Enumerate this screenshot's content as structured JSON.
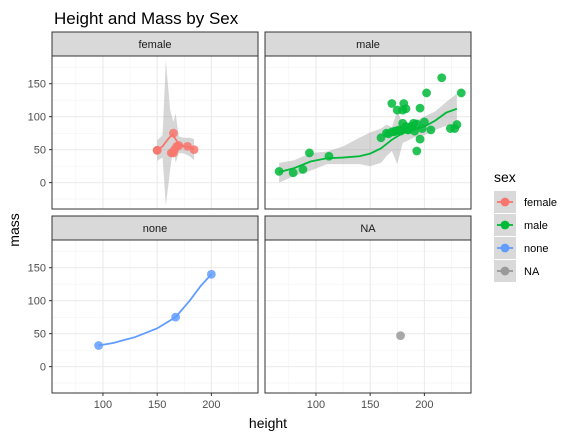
{
  "chart_data": {
    "type": "scatter",
    "title": "Height and Mass by Sex",
    "xlabel": "height",
    "ylabel": "mass",
    "xlim": [
      53,
      243
    ],
    "ylim": [
      -40,
      192
    ],
    "x_ticks": [
      100,
      150,
      200
    ],
    "y_ticks": [
      0,
      50,
      100,
      150
    ],
    "legend": {
      "title": "sex",
      "entries": [
        "female",
        "male",
        "none",
        "NA"
      ],
      "placement": "right"
    },
    "panels": [
      {
        "strip": "female",
        "color": "#F8766D",
        "points": [
          [
            150,
            49
          ],
          [
            165,
            75
          ],
          [
            163,
            45
          ],
          [
            166,
            50
          ],
          [
            168,
            55
          ],
          [
            170,
            56.2
          ],
          [
            178,
            55
          ],
          [
            184,
            50
          ],
          [
            150,
            49
          ],
          [
            165,
            45
          ]
        ],
        "smooth": [
          [
            150,
            49
          ],
          [
            155,
            55
          ],
          [
            160,
            66
          ],
          [
            164,
            73
          ],
          [
            167,
            66
          ],
          [
            170,
            58
          ],
          [
            175,
            55
          ],
          [
            180,
            54
          ],
          [
            184,
            50
          ]
        ],
        "band": [
          [
            150,
            33,
            64
          ],
          [
            155,
            38,
            72
          ],
          [
            158,
            -35,
            185
          ],
          [
            162,
            20,
            110
          ],
          [
            165,
            55,
            92
          ],
          [
            167,
            30,
            105
          ],
          [
            170,
            45,
            70
          ],
          [
            175,
            44,
            68
          ],
          [
            180,
            40,
            68
          ],
          [
            184,
            34,
            66
          ]
        ]
      },
      {
        "strip": "male",
        "color": "#00BA38",
        "points": [
          [
            66,
            17
          ],
          [
            79,
            15
          ],
          [
            88,
            20
          ],
          [
            94,
            45
          ],
          [
            112,
            40
          ],
          [
            160,
            68
          ],
          [
            165,
            75
          ],
          [
            167,
            74
          ],
          [
            170,
            77
          ],
          [
            172,
            77
          ],
          [
            173,
            78
          ],
          [
            175,
            79
          ],
          [
            177,
            80
          ],
          [
            178,
            78
          ],
          [
            180,
            80
          ],
          [
            180,
            110
          ],
          [
            181,
            120
          ],
          [
            183,
            85
          ],
          [
            183,
            112
          ],
          [
            185,
            80
          ],
          [
            188,
            84
          ],
          [
            188,
            85
          ],
          [
            190,
            90
          ],
          [
            191,
            78
          ],
          [
            193,
            48
          ],
          [
            193,
            89
          ],
          [
            196,
            66
          ],
          [
            198,
            82
          ],
          [
            200,
            92
          ],
          [
            202,
            136
          ],
          [
            206,
            80
          ],
          [
            216,
            159
          ],
          [
            224,
            82
          ],
          [
            228,
            82
          ],
          [
            230,
            88
          ],
          [
            234,
            136
          ],
          [
            170,
            120
          ],
          [
            175,
            110
          ],
          [
            180,
            90
          ],
          [
            185,
            80
          ],
          [
            196,
            113
          ],
          [
            188,
            85
          ]
        ],
        "smooth": [
          [
            66,
            16
          ],
          [
            80,
            22
          ],
          [
            95,
            32
          ],
          [
            110,
            37
          ],
          [
            125,
            38
          ],
          [
            140,
            40
          ],
          [
            150,
            44
          ],
          [
            160,
            52
          ],
          [
            170,
            65
          ],
          [
            180,
            75
          ],
          [
            190,
            80
          ],
          [
            200,
            85
          ],
          [
            210,
            94
          ],
          [
            220,
            106
          ],
          [
            230,
            112
          ]
        ],
        "band": [
          [
            66,
            0,
            30
          ],
          [
            80,
            10,
            34
          ],
          [
            95,
            18,
            45
          ],
          [
            110,
            28,
            47
          ],
          [
            125,
            28,
            55
          ],
          [
            140,
            28,
            68
          ],
          [
            150,
            25,
            76
          ],
          [
            160,
            30,
            82
          ],
          [
            165,
            40,
            88
          ],
          [
            170,
            48,
            84
          ],
          [
            175,
            28,
            108
          ],
          [
            180,
            60,
            90
          ],
          [
            190,
            68,
            92
          ],
          [
            200,
            72,
            100
          ],
          [
            210,
            80,
            108
          ],
          [
            220,
            86,
            122
          ],
          [
            230,
            86,
            135
          ]
        ]
      },
      {
        "strip": "none",
        "color": "#619CFF",
        "points": [
          [
            96,
            32
          ],
          [
            167,
            75
          ],
          [
            200,
            140
          ]
        ],
        "smooth": [
          [
            96,
            32
          ],
          [
            110,
            36
          ],
          [
            130,
            45
          ],
          [
            150,
            58
          ],
          [
            167,
            75
          ],
          [
            180,
            100
          ],
          [
            190,
            122
          ],
          [
            200,
            140
          ]
        ],
        "band": []
      },
      {
        "strip": "NA",
        "color": "#999999",
        "points": [
          [
            178,
            47
          ]
        ],
        "smooth": [],
        "band": []
      }
    ]
  }
}
